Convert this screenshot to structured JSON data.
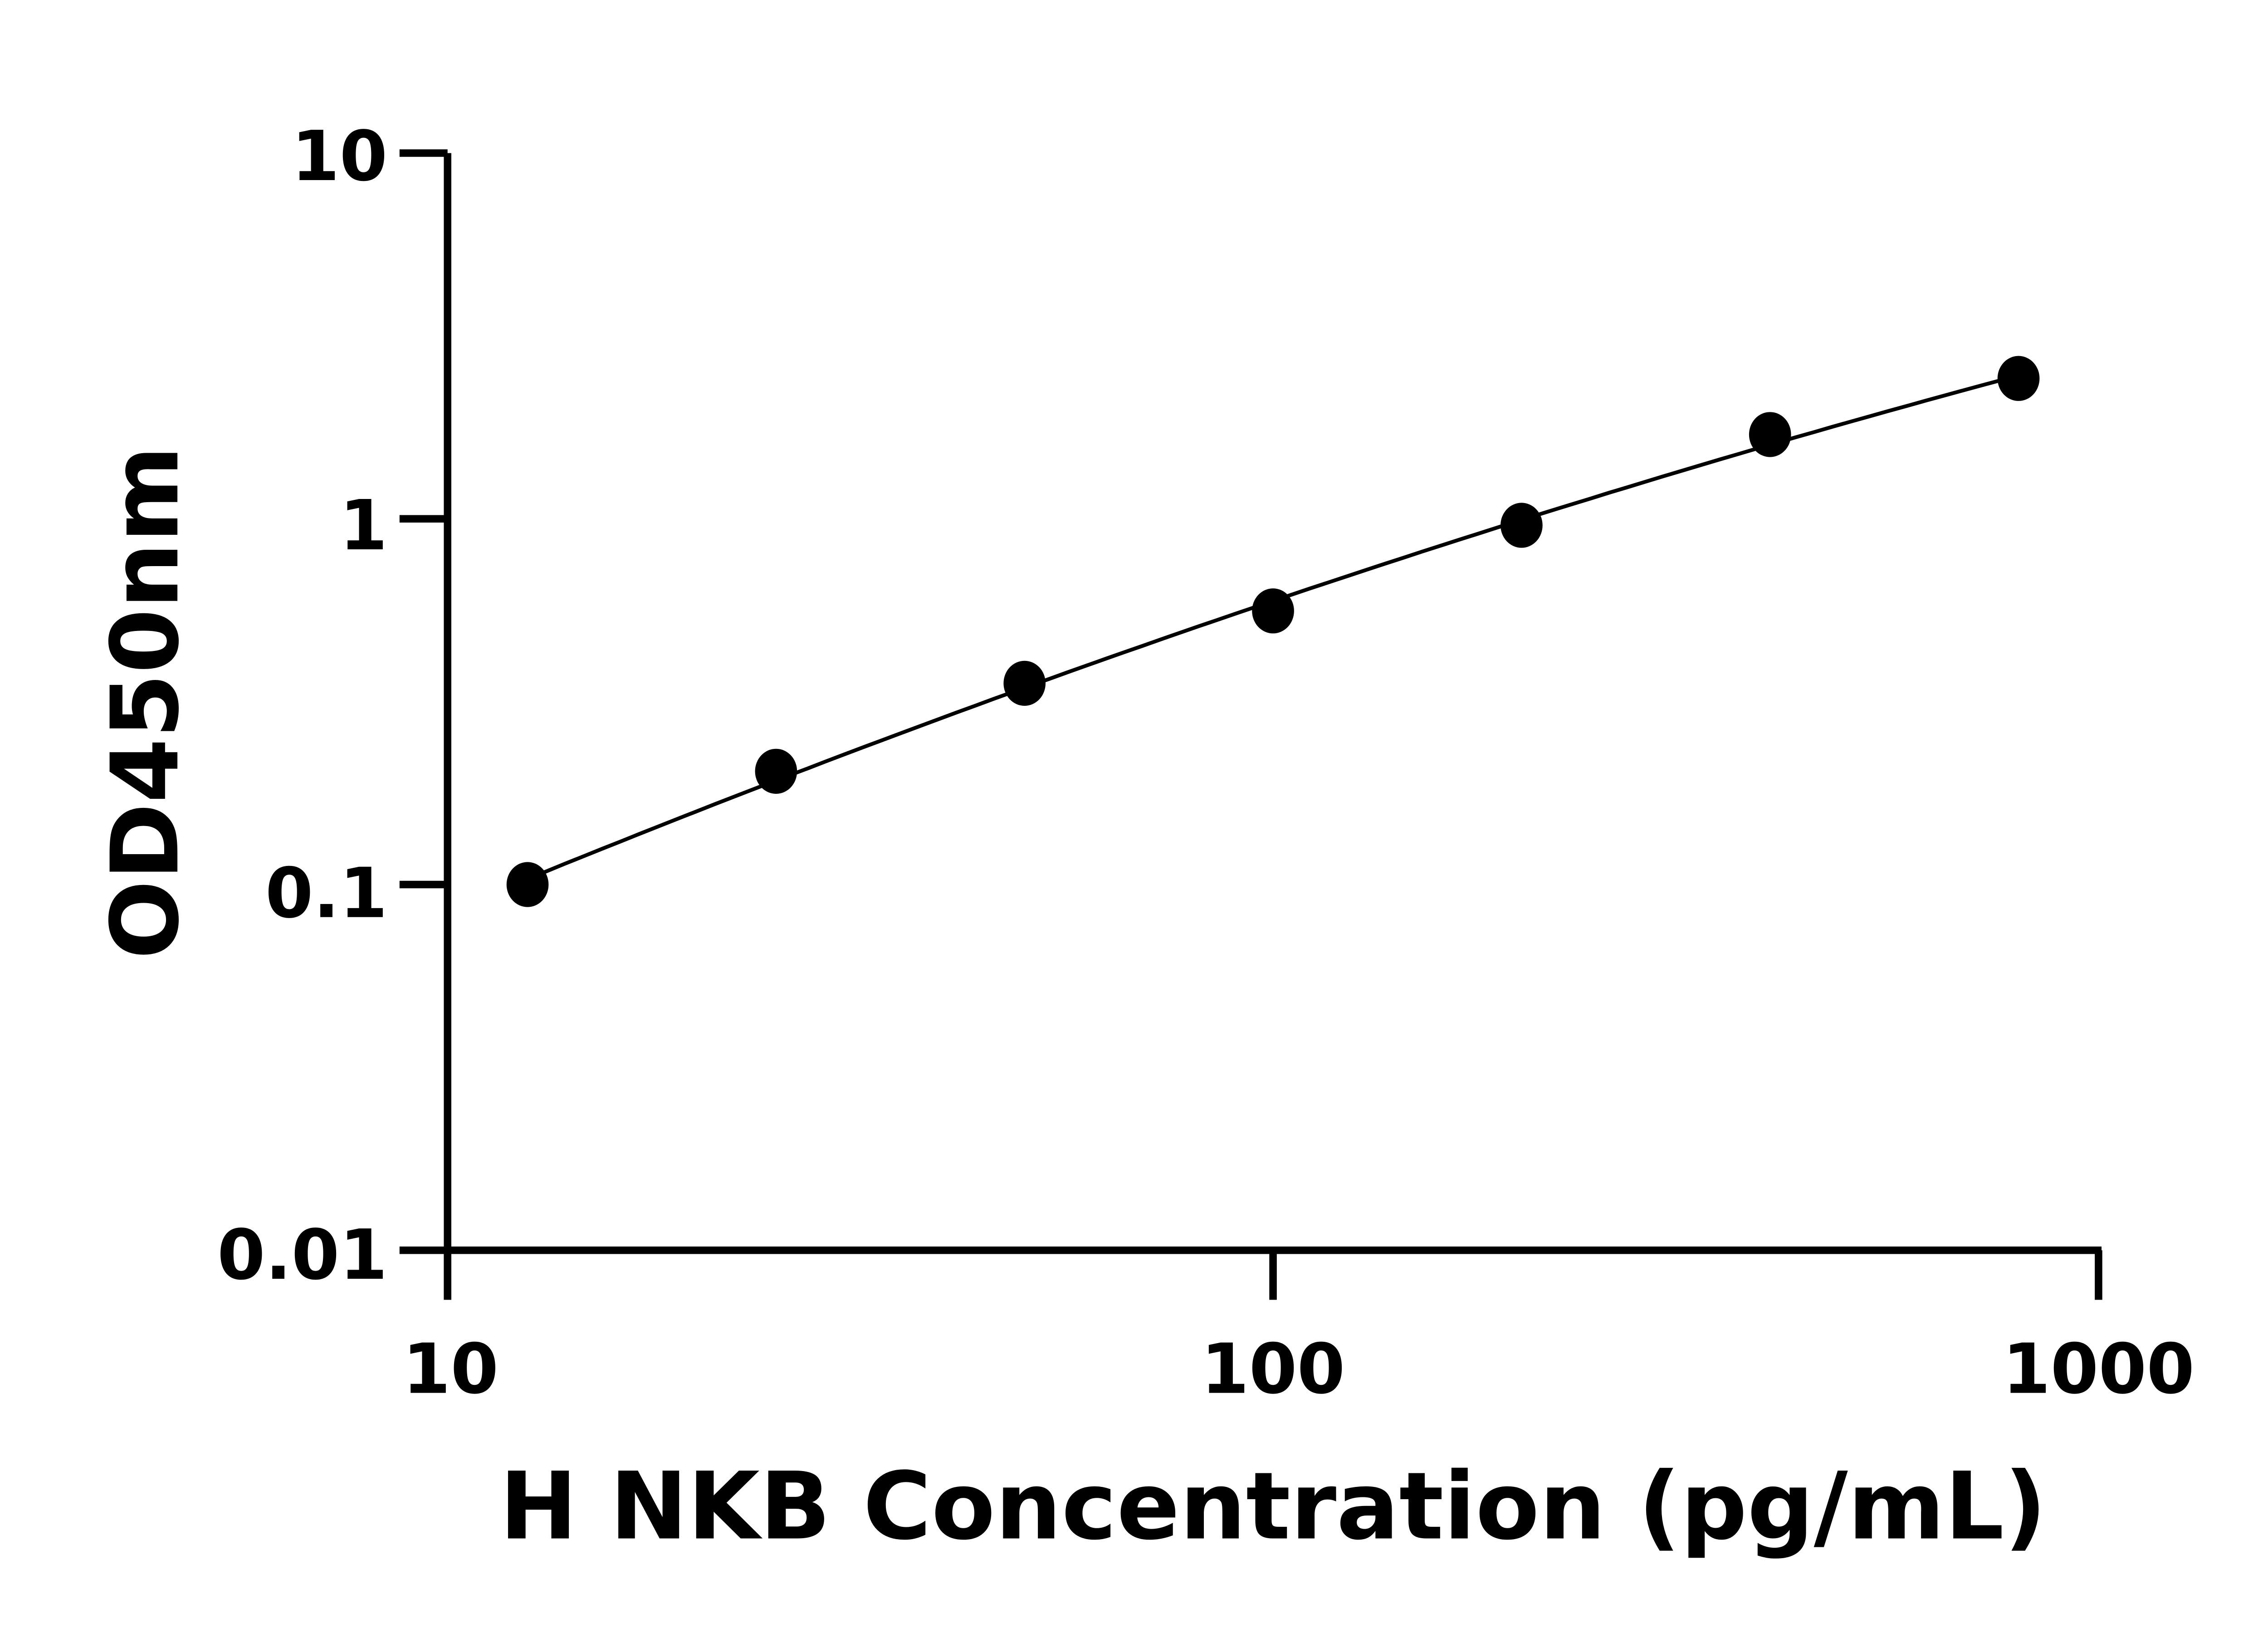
{
  "chart_data": {
    "type": "scatter",
    "title": "",
    "xlabel": "H NKB Concentration (pg/mL)",
    "ylabel": "OD450nm",
    "x_scale": "log",
    "y_scale": "log",
    "xlim": [
      10,
      1000
    ],
    "ylim": [
      0.01,
      10
    ],
    "x_ticks": [
      "10",
      "100",
      "1000"
    ],
    "y_ticks": [
      "0.01",
      "0.1",
      "1",
      "10"
    ],
    "grid": false,
    "fit_curve": true,
    "colors": {
      "points": "#000000",
      "curve": "#000000",
      "axes": "#000000"
    },
    "series": [
      {
        "x": [
          12.5,
          25,
          50,
          100,
          200,
          400,
          800
        ],
        "y": [
          0.1,
          0.204,
          0.355,
          0.56,
          0.96,
          1.7,
          2.42
        ]
      }
    ]
  }
}
